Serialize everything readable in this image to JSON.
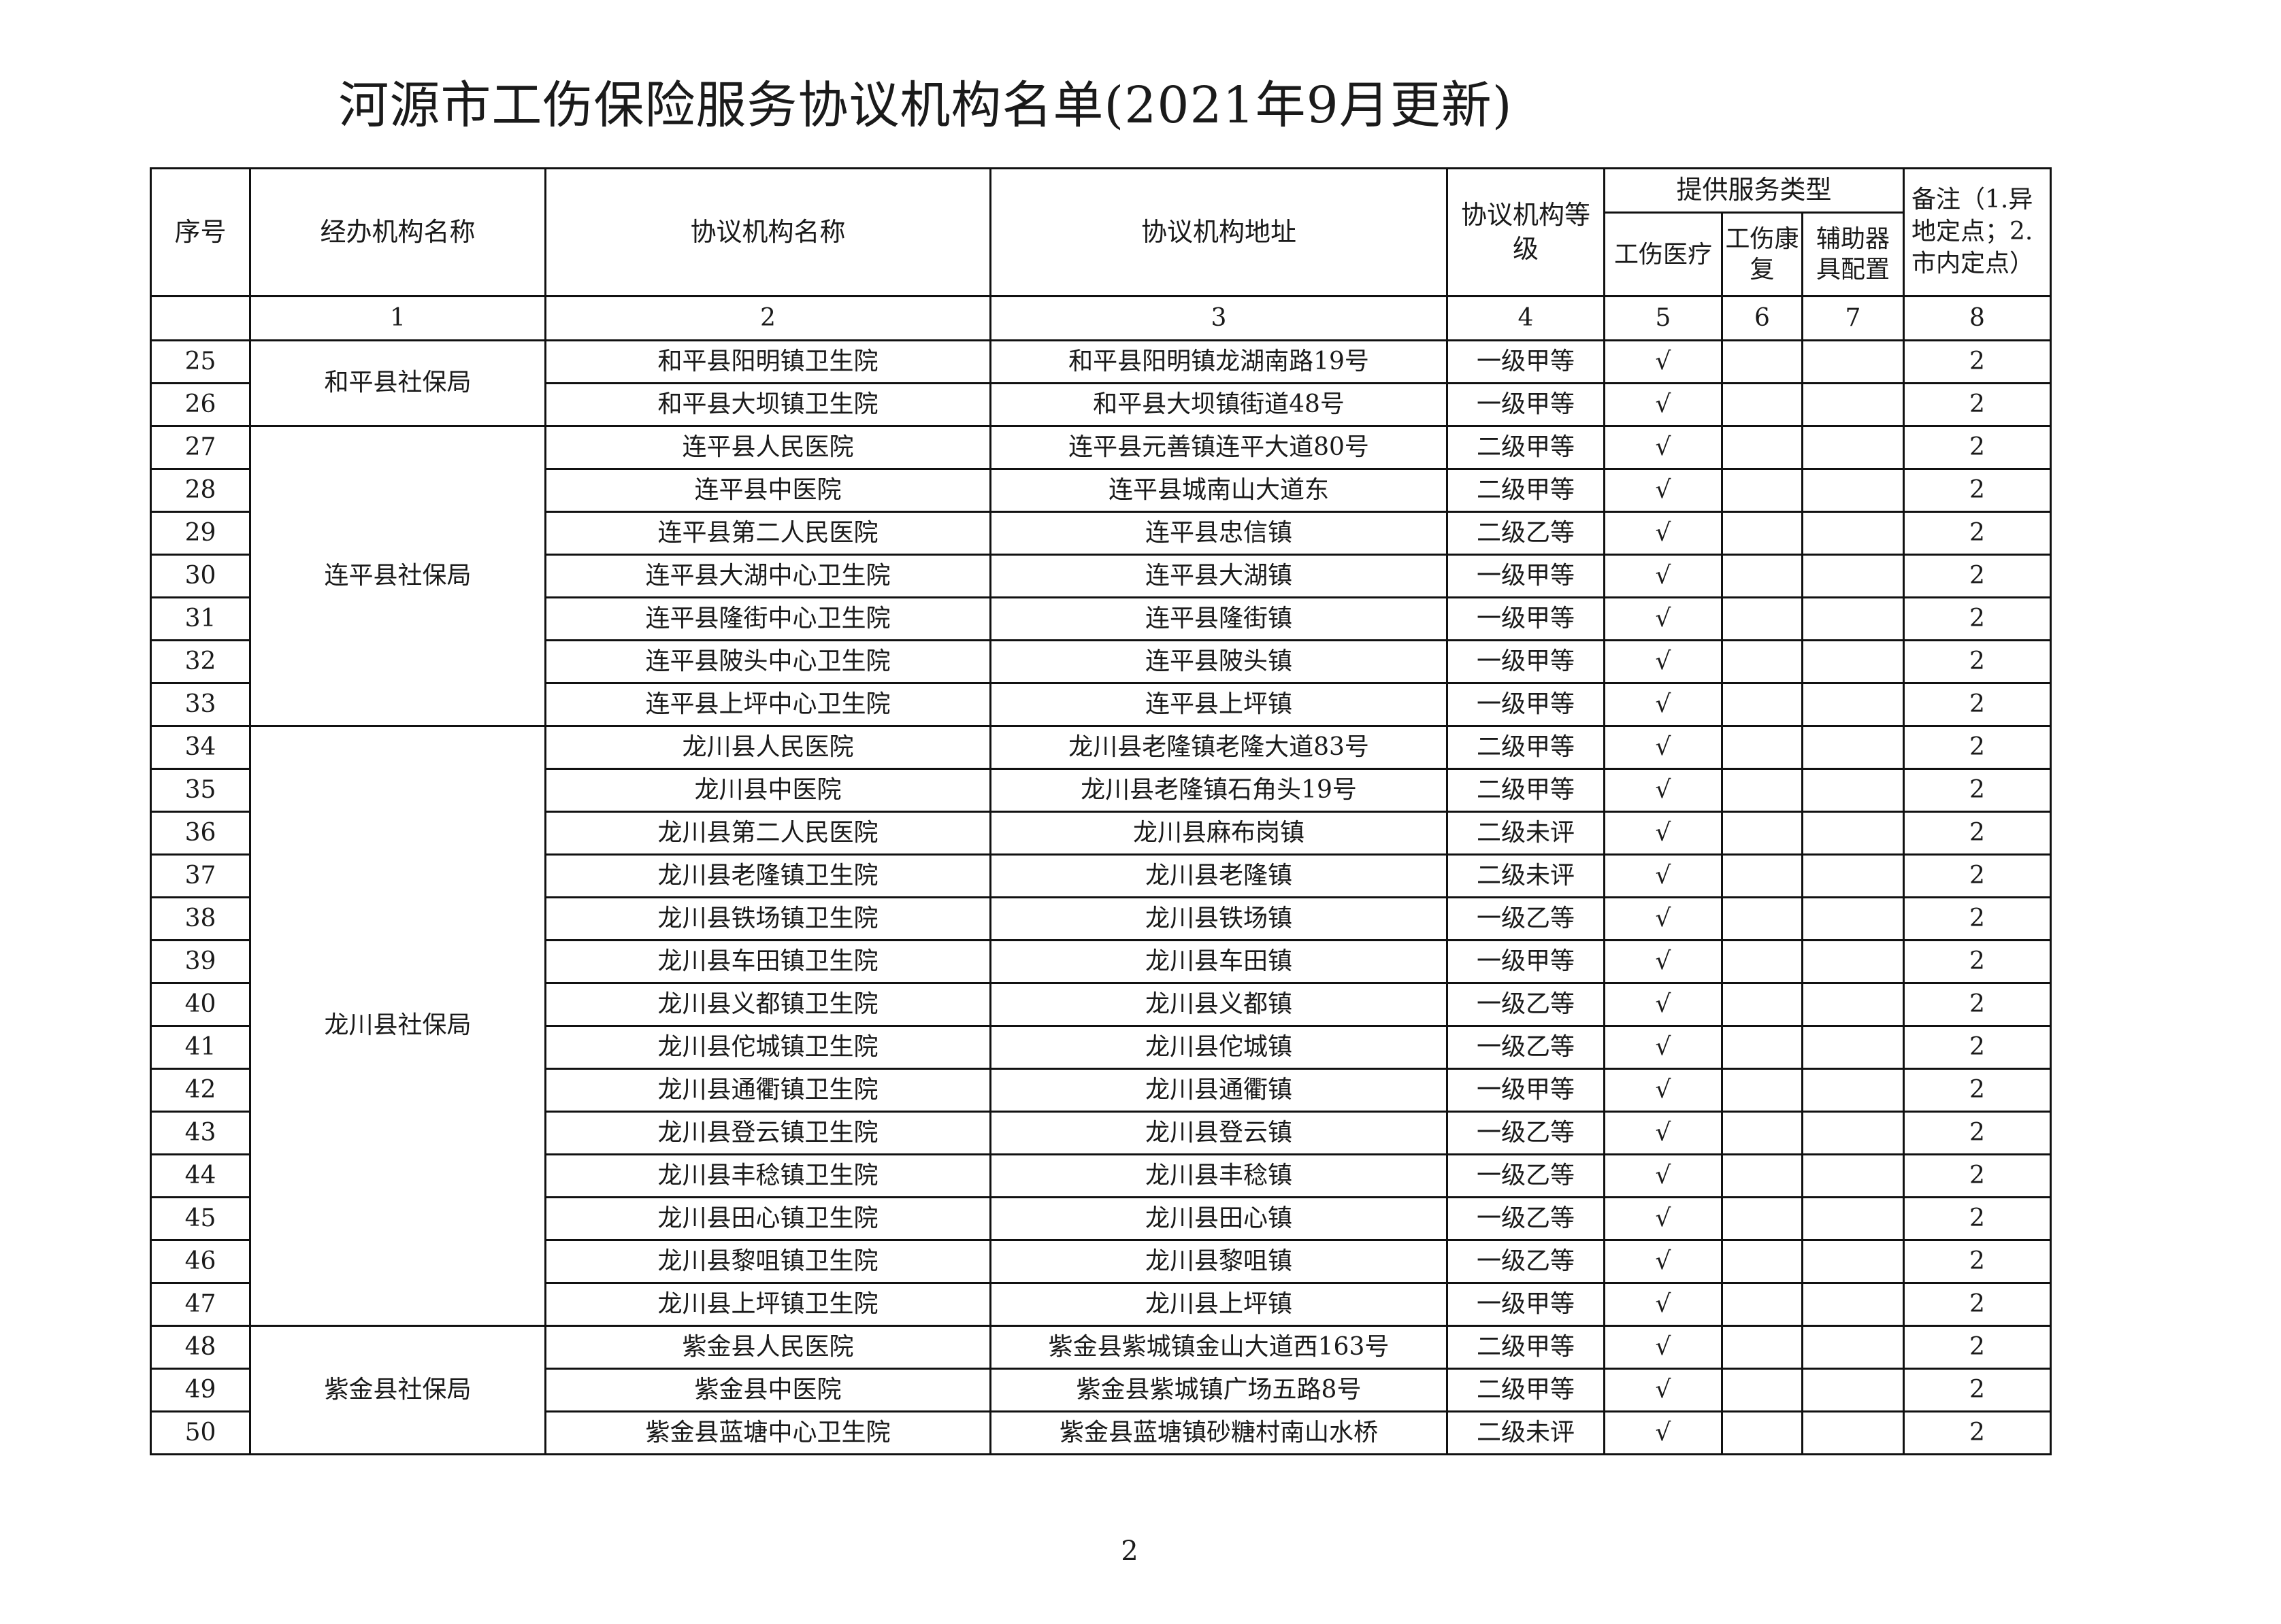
{
  "title": "河源市工伤保险服务协议机构名单(2021年9月更新)",
  "header": {
    "seq": "序号",
    "agency": "经办机构名称",
    "institution": "协议机构名称",
    "address": "协议机构地址",
    "level": "协议机构等级",
    "service_group": "提供服务类型",
    "medical": "工伤医疗",
    "rehab": "工伤康复",
    "aids": "辅助器具配置",
    "note": "备注（1.异地定点；2.市内定点）"
  },
  "column_index": [
    "1",
    "2",
    "3",
    "4",
    "5",
    "6",
    "7",
    "8"
  ],
  "groups": [
    {
      "agency": "和平县社保局",
      "rows": [
        {
          "no": "25",
          "name": "和平县阳明镇卫生院",
          "address": "和平县阳明镇龙湖南路19号",
          "level": "一级甲等",
          "medical": "√",
          "rehab": "",
          "aids": "",
          "note": "2"
        },
        {
          "no": "26",
          "name": "和平县大坝镇卫生院",
          "address": "和平县大坝镇街道48号",
          "level": "一级甲等",
          "medical": "√",
          "rehab": "",
          "aids": "",
          "note": "2"
        }
      ]
    },
    {
      "agency": "连平县社保局",
      "rows": [
        {
          "no": "27",
          "name": "连平县人民医院",
          "address": "连平县元善镇连平大道80号",
          "level": "二级甲等",
          "medical": "√",
          "rehab": "",
          "aids": "",
          "note": "2"
        },
        {
          "no": "28",
          "name": "连平县中医院",
          "address": "连平县城南山大道东",
          "level": "二级甲等",
          "medical": "√",
          "rehab": "",
          "aids": "",
          "note": "2"
        },
        {
          "no": "29",
          "name": "连平县第二人民医院",
          "address": "连平县忠信镇",
          "level": "二级乙等",
          "medical": "√",
          "rehab": "",
          "aids": "",
          "note": "2"
        },
        {
          "no": "30",
          "name": "连平县大湖中心卫生院",
          "address": "连平县大湖镇",
          "level": "一级甲等",
          "medical": "√",
          "rehab": "",
          "aids": "",
          "note": "2"
        },
        {
          "no": "31",
          "name": "连平县隆街中心卫生院",
          "address": "连平县隆街镇",
          "level": "一级甲等",
          "medical": "√",
          "rehab": "",
          "aids": "",
          "note": "2"
        },
        {
          "no": "32",
          "name": "连平县陂头中心卫生院",
          "address": "连平县陂头镇",
          "level": "一级甲等",
          "medical": "√",
          "rehab": "",
          "aids": "",
          "note": "2"
        },
        {
          "no": "33",
          "name": "连平县上坪中心卫生院",
          "address": "连平县上坪镇",
          "level": "一级甲等",
          "medical": "√",
          "rehab": "",
          "aids": "",
          "note": "2"
        }
      ]
    },
    {
      "agency": "龙川县社保局",
      "rows": [
        {
          "no": "34",
          "name": "龙川县人民医院",
          "address": "龙川县老隆镇老隆大道83号",
          "level": "二级甲等",
          "medical": "√",
          "rehab": "",
          "aids": "",
          "note": "2"
        },
        {
          "no": "35",
          "name": "龙川县中医院",
          "address": "龙川县老隆镇石角头19号",
          "level": "二级甲等",
          "medical": "√",
          "rehab": "",
          "aids": "",
          "note": "2"
        },
        {
          "no": "36",
          "name": "龙川县第二人民医院",
          "address": "龙川县麻布岗镇",
          "level": "二级未评",
          "medical": "√",
          "rehab": "",
          "aids": "",
          "note": "2"
        },
        {
          "no": "37",
          "name": "龙川县老隆镇卫生院",
          "address": "龙川县老隆镇",
          "level": "二级未评",
          "medical": "√",
          "rehab": "",
          "aids": "",
          "note": "2"
        },
        {
          "no": "38",
          "name": "龙川县铁场镇卫生院",
          "address": "龙川县铁场镇",
          "level": "一级乙等",
          "medical": "√",
          "rehab": "",
          "aids": "",
          "note": "2"
        },
        {
          "no": "39",
          "name": "龙川县车田镇卫生院",
          "address": "龙川县车田镇",
          "level": "一级甲等",
          "medical": "√",
          "rehab": "",
          "aids": "",
          "note": "2"
        },
        {
          "no": "40",
          "name": "龙川县义都镇卫生院",
          "address": "龙川县义都镇",
          "level": "一级乙等",
          "medical": "√",
          "rehab": "",
          "aids": "",
          "note": "2"
        },
        {
          "no": "41",
          "name": "龙川县佗城镇卫生院",
          "address": "龙川县佗城镇",
          "level": "一级乙等",
          "medical": "√",
          "rehab": "",
          "aids": "",
          "note": "2"
        },
        {
          "no": "42",
          "name": "龙川县通衢镇卫生院",
          "address": "龙川县通衢镇",
          "level": "一级甲等",
          "medical": "√",
          "rehab": "",
          "aids": "",
          "note": "2"
        },
        {
          "no": "43",
          "name": "龙川县登云镇卫生院",
          "address": "龙川县登云镇",
          "level": "一级乙等",
          "medical": "√",
          "rehab": "",
          "aids": "",
          "note": "2"
        },
        {
          "no": "44",
          "name": "龙川县丰稔镇卫生院",
          "address": "龙川县丰稔镇",
          "level": "一级乙等",
          "medical": "√",
          "rehab": "",
          "aids": "",
          "note": "2"
        },
        {
          "no": "45",
          "name": "龙川县田心镇卫生院",
          "address": "龙川县田心镇",
          "level": "一级乙等",
          "medical": "√",
          "rehab": "",
          "aids": "",
          "note": "2"
        },
        {
          "no": "46",
          "name": "龙川县黎咀镇卫生院",
          "address": "龙川县黎咀镇",
          "level": "一级乙等",
          "medical": "√",
          "rehab": "",
          "aids": "",
          "note": "2"
        },
        {
          "no": "47",
          "name": "龙川县上坪镇卫生院",
          "address": "龙川县上坪镇",
          "level": "一级甲等",
          "medical": "√",
          "rehab": "",
          "aids": "",
          "note": "2"
        }
      ]
    },
    {
      "agency": "紫金县社保局",
      "rows": [
        {
          "no": "48",
          "name": "紫金县人民医院",
          "address": "紫金县紫城镇金山大道西163号",
          "level": "二级甲等",
          "medical": "√",
          "rehab": "",
          "aids": "",
          "note": "2"
        },
        {
          "no": "49",
          "name": "紫金县中医院",
          "address": "紫金县紫城镇广场五路8号",
          "level": "二级甲等",
          "medical": "√",
          "rehab": "",
          "aids": "",
          "note": "2"
        },
        {
          "no": "50",
          "name": "紫金县蓝塘中心卫生院",
          "address": "紫金县蓝塘镇砂糖村南山水桥",
          "level": "二级未评",
          "medical": "√",
          "rehab": "",
          "aids": "",
          "note": "2"
        }
      ]
    }
  ],
  "page_number": "2"
}
